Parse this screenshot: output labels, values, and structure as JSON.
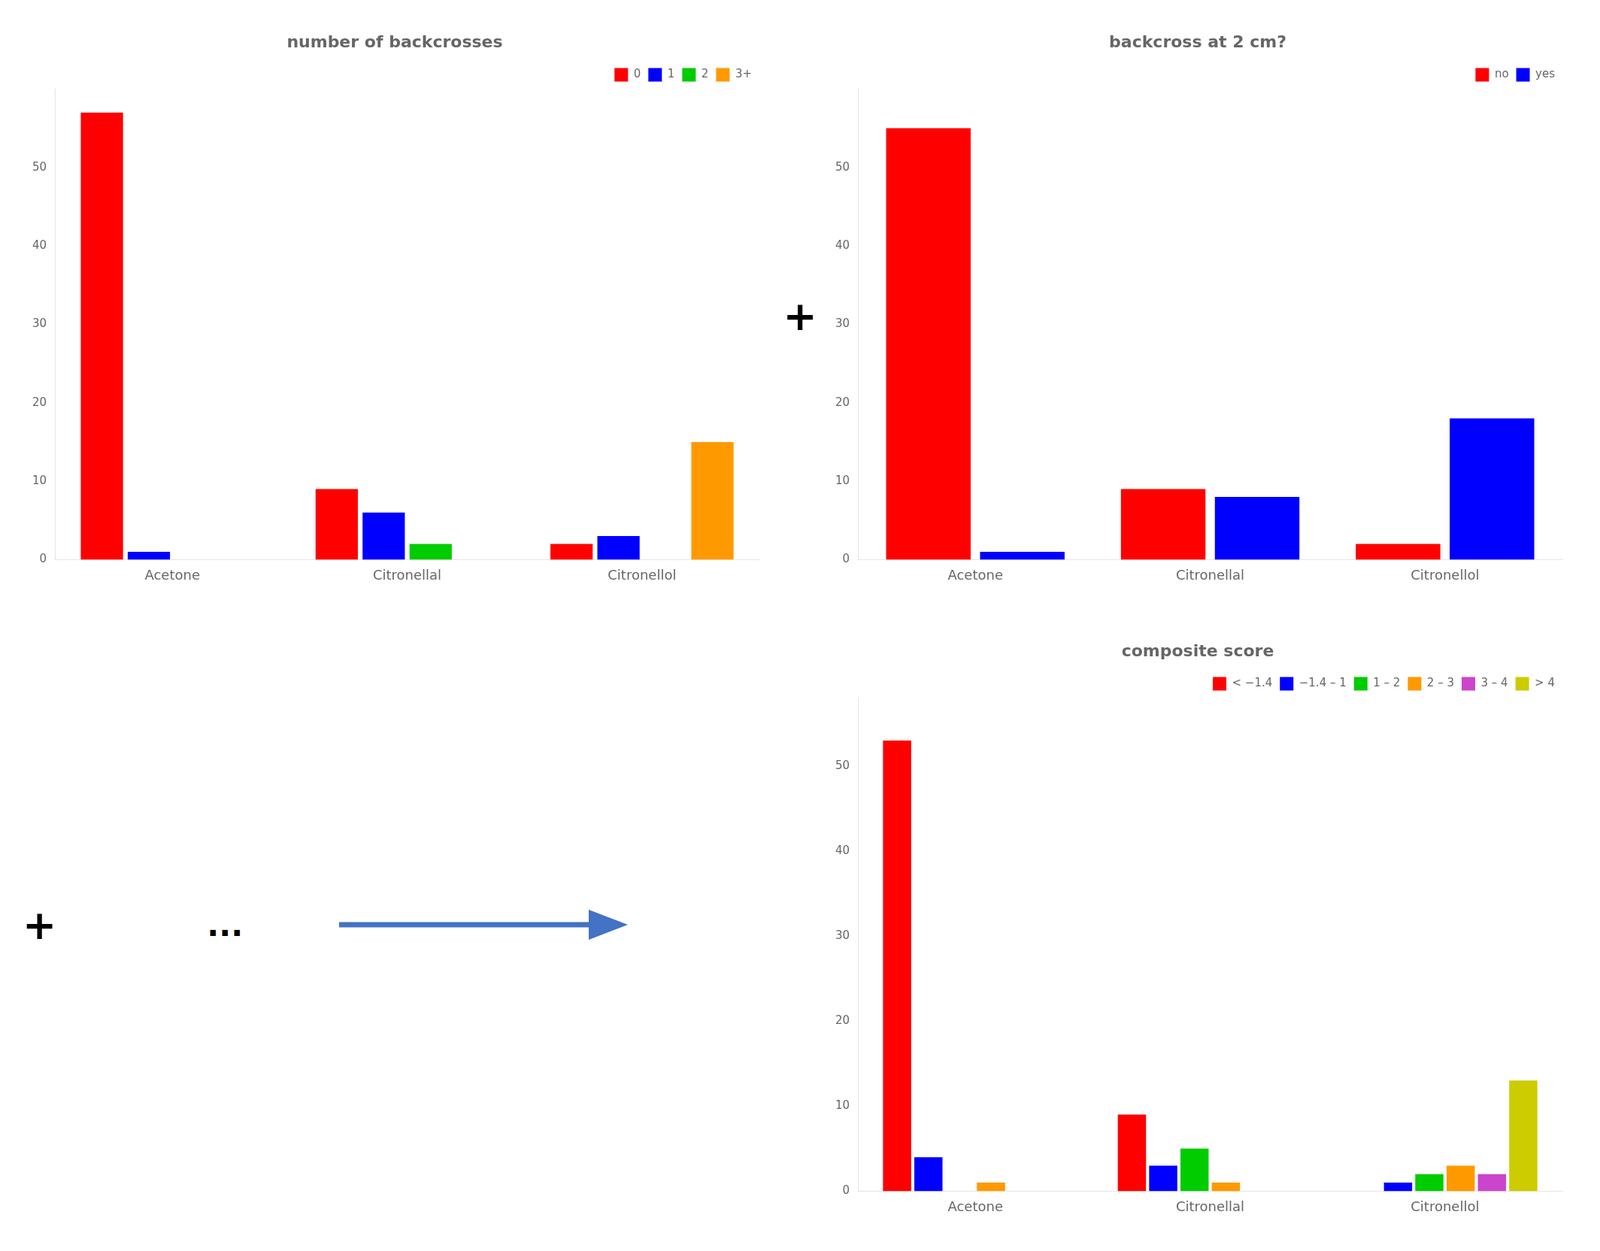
{
  "chart_data": [
    {
      "type": "bar",
      "title": "number of backcrosses",
      "categories": [
        "Acetone",
        "Citronellal",
        "Citronellol"
      ],
      "series": [
        {
          "name": "0",
          "color": "#FF0000",
          "values": [
            57,
            9,
            2
          ]
        },
        {
          "name": "1",
          "color": "#0000FF",
          "values": [
            1,
            6,
            3
          ]
        },
        {
          "name": "2",
          "color": "#00CC00",
          "values": [
            0,
            2,
            0
          ]
        },
        {
          "name": "3+",
          "color": "#FF9900",
          "values": [
            0,
            0,
            15
          ]
        }
      ],
      "ylim": [
        0,
        60
      ],
      "yticks": [
        0,
        10,
        20,
        30,
        40,
        50
      ],
      "grid": false,
      "legend": "upper right",
      "annotations": [
        "+"
      ]
    },
    {
      "type": "bar",
      "title": "backcross at 2 cm?",
      "categories": [
        "Acetone",
        "Citronellal",
        "Citronellol"
      ],
      "series": [
        {
          "name": "no",
          "color": "#FF0000",
          "values": [
            55,
            9,
            2
          ]
        },
        {
          "name": "yes",
          "color": "#0000FF",
          "values": [
            1,
            8,
            18
          ]
        }
      ],
      "ylim": [
        0,
        60
      ],
      "yticks": [
        0,
        10,
        20,
        30,
        40,
        50
      ],
      "grid": false,
      "legend": "upper right"
    },
    {
      "type": "bar",
      "title": "composite score",
      "categories": [
        "Acetone",
        "Citronellal",
        "Citronellol"
      ],
      "series": [
        {
          "name": "< −1.4",
          "color": "#FF0000",
          "values": [
            53,
            9,
            0
          ]
        },
        {
          "name": "−1.4 – 1",
          "color": "#0000FF",
          "values": [
            4,
            3,
            1
          ]
        },
        {
          "name": "1 – 2",
          "color": "#00CC00",
          "values": [
            0,
            5,
            2
          ]
        },
        {
          "name": "2 – 3",
          "color": "#FF9900",
          "values": [
            1,
            1,
            3
          ]
        },
        {
          "name": "3 – 4",
          "color": "#CC44CC",
          "values": [
            0,
            0,
            2
          ]
        },
        {
          "name": "> 4",
          "color": "#CCCC00",
          "values": [
            0,
            0,
            13
          ]
        }
      ],
      "ylim": [
        0,
        58
      ],
      "yticks": [
        0,
        10,
        20,
        30,
        40,
        50
      ],
      "grid": false,
      "legend": "upper right",
      "annotations": [
        "+",
        "..."
      ]
    }
  ]
}
